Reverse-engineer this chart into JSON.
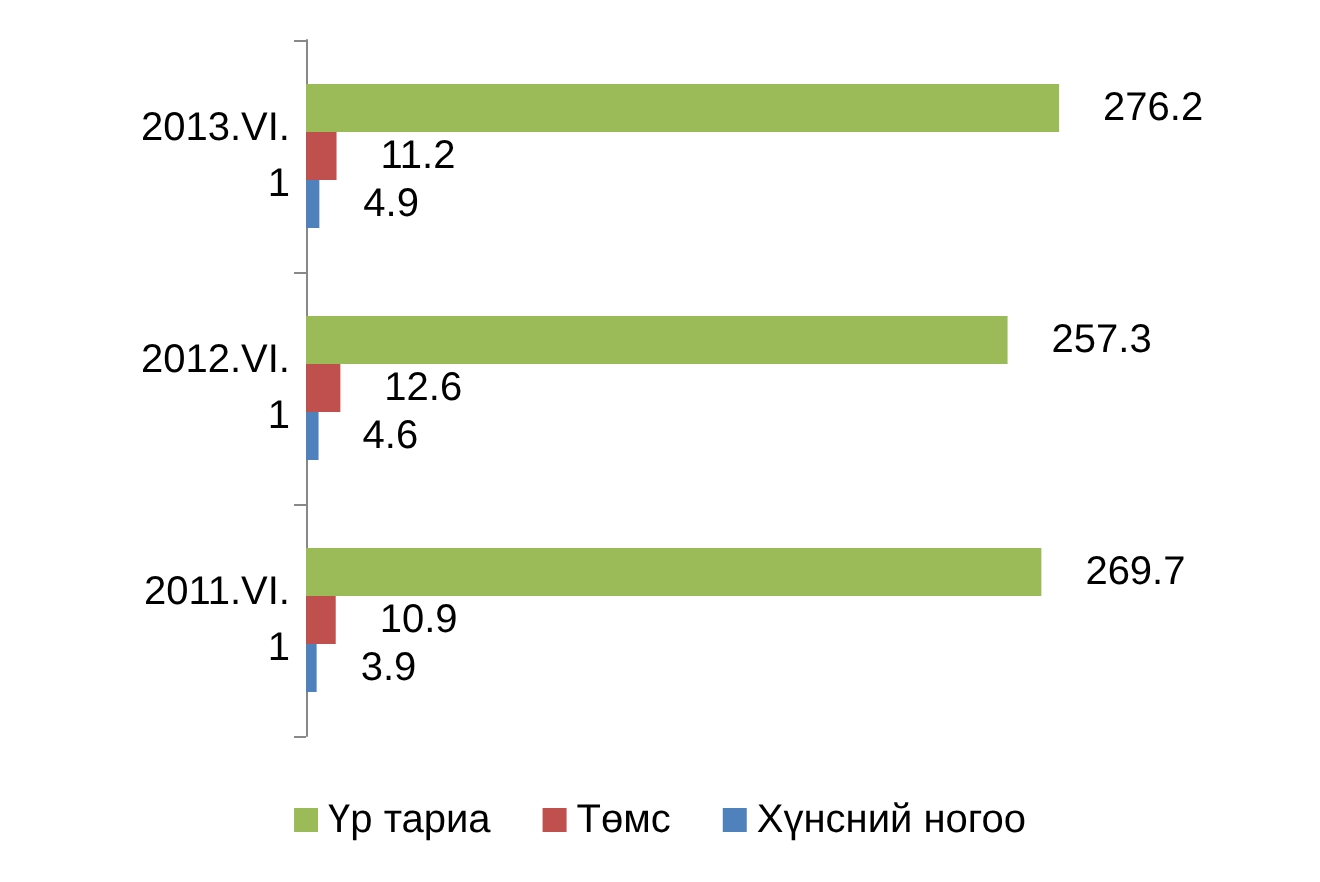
{
  "chart_data": {
    "type": "bar",
    "orientation": "horizontal",
    "categories": [
      "2013.VI.1",
      "2012.VI.1",
      "2011.VI.1"
    ],
    "series": [
      {
        "name": "Үр тариа",
        "color": "#9bbb59",
        "values": [
          276.2,
          257.3,
          269.7
        ]
      },
      {
        "name": "Төмс",
        "color": "#c0504d",
        "values": [
          11.2,
          12.6,
          10.9
        ]
      },
      {
        "name": "Хүнсний ногоо",
        "color": "#4f81bd",
        "values": [
          4.9,
          4.6,
          3.9
        ]
      }
    ],
    "data_labels": true,
    "legend": "bottom"
  }
}
